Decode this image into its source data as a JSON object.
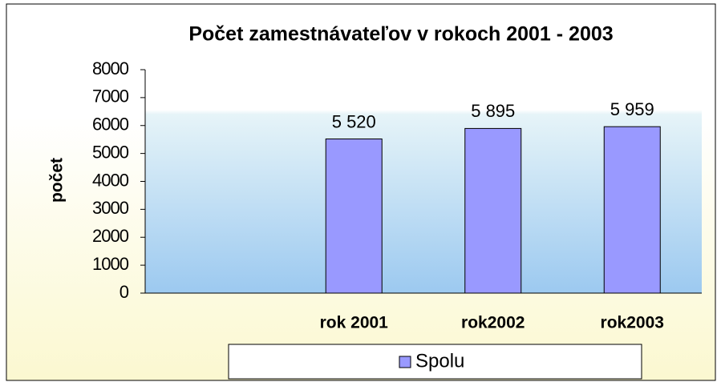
{
  "chart_data": {
    "type": "bar",
    "title": "Počet zamestnávateľov v rokoch 2001 - 2003",
    "y_label": "počet",
    "categories": [
      null,
      "rok 2001",
      "rok2002",
      "rok2003"
    ],
    "series": [
      {
        "name": "Spolu",
        "color": "#9999ff",
        "values": [
          null,
          5520,
          5895,
          5959
        ],
        "value_labels": [
          null,
          "5 520",
          "5 895",
          "5 959"
        ]
      }
    ],
    "ylim": [
      0,
      8000
    ],
    "yticks": [
      0,
      1000,
      2000,
      3000,
      4000,
      5000,
      6000,
      7000,
      8000
    ],
    "legend": "bottom"
  }
}
